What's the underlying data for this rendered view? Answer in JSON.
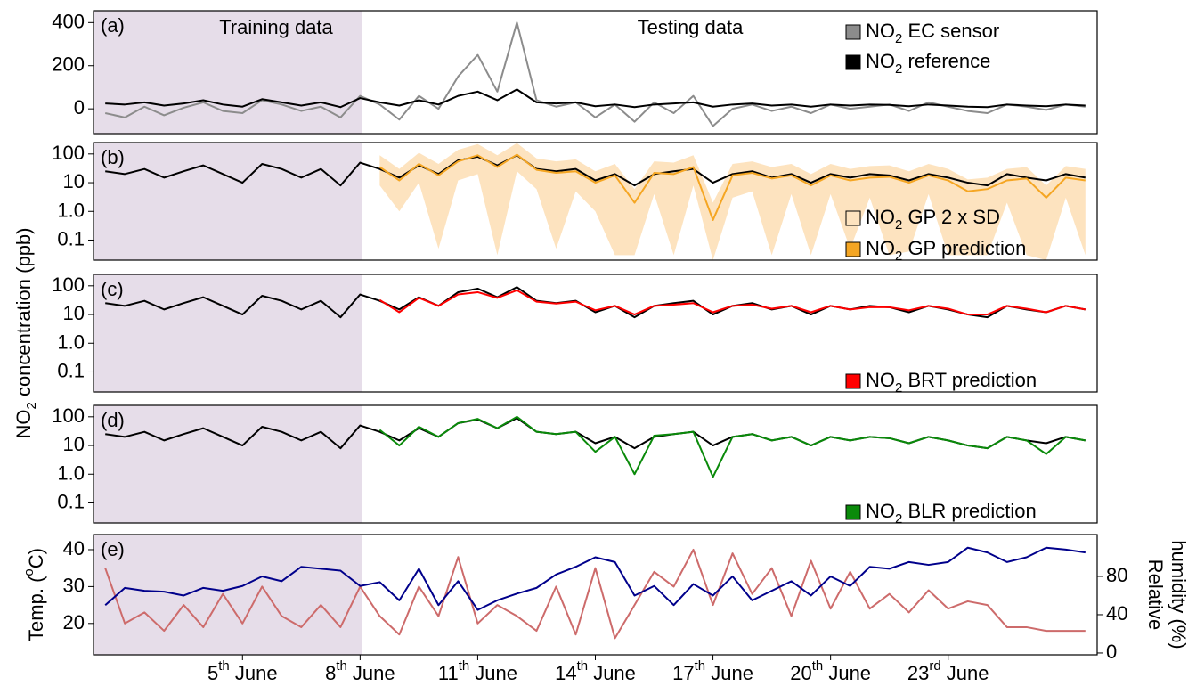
{
  "chart_data": [
    {
      "type": "line",
      "label": "(a)",
      "annotations": [
        "Training data",
        "Testing data"
      ],
      "shaded_region": [
        1.2,
        8.05
      ],
      "xlim": [
        1.2,
        26.8
      ],
      "ylim": [
        -115,
        455
      ],
      "yticks": [
        0,
        200,
        400
      ],
      "legend": "upper right",
      "x": [
        1.5,
        2,
        2.5,
        3,
        3.5,
        4,
        4.5,
        5,
        5.5,
        6,
        6.5,
        7,
        7.5,
        8,
        8.5,
        9,
        9.5,
        10,
        10.5,
        11,
        11.5,
        12,
        12.5,
        13,
        13.5,
        14,
        14.5,
        15,
        15.5,
        16,
        16.5,
        17,
        17.5,
        18,
        18.5,
        19,
        19.5,
        20,
        20.5,
        21,
        21.5,
        22,
        22.5,
        23,
        23.5,
        24,
        24.5,
        25,
        25.5,
        26,
        26.5
      ],
      "series": [
        {
          "name": "NO2 EC sensor",
          "color": "#8c8c8c",
          "values": [
            -20,
            -40,
            10,
            -30,
            5,
            30,
            -10,
            -20,
            40,
            20,
            -10,
            10,
            -40,
            60,
            20,
            -50,
            60,
            0,
            150,
            250,
            80,
            400,
            40,
            10,
            30,
            -40,
            20,
            -60,
            30,
            -20,
            60,
            -80,
            0,
            20,
            -10,
            10,
            -20,
            20,
            0,
            10,
            20,
            -10,
            30,
            10,
            -10,
            -20,
            20,
            10,
            -5,
            20,
            10
          ]
        },
        {
          "name": "NO2 reference",
          "color": "#000000",
          "values": [
            25,
            20,
            30,
            15,
            25,
            40,
            20,
            10,
            45,
            30,
            15,
            30,
            8,
            50,
            30,
            15,
            40,
            20,
            60,
            80,
            40,
            90,
            30,
            25,
            30,
            12,
            20,
            8,
            20,
            25,
            30,
            10,
            20,
            25,
            15,
            20,
            10,
            20,
            15,
            20,
            18,
            12,
            20,
            15,
            10,
            8,
            20,
            15,
            12,
            20,
            15
          ]
        }
      ]
    },
    {
      "type": "line",
      "label": "(b)",
      "log_y": true,
      "xlim": [
        1.2,
        26.8
      ],
      "ylim": [
        0.02,
        250
      ],
      "yticks": [
        {
          "value": 0.1,
          "label": "0.1"
        },
        {
          "value": 1,
          "label": "1.0"
        },
        10,
        100
      ],
      "legend": "lower right",
      "x": [
        1.5,
        2,
        2.5,
        3,
        3.5,
        4,
        4.5,
        5,
        5.5,
        6,
        6.5,
        7,
        7.5,
        8,
        8.5,
        9,
        9.5,
        10,
        10.5,
        11,
        11.5,
        12,
        12.5,
        13,
        13.5,
        14,
        14.5,
        15,
        15.5,
        16,
        16.5,
        17,
        17.5,
        18,
        18.5,
        19,
        19.5,
        20,
        20.5,
        21,
        21.5,
        22,
        22.5,
        23,
        23.5,
        24,
        24.5,
        25,
        25.5,
        26,
        26.5
      ],
      "series": [
        {
          "name": "NO2 GP 2 x SD",
          "color": "#fde3bf",
          "lower": [
            null,
            null,
            null,
            null,
            null,
            null,
            null,
            null,
            null,
            null,
            null,
            null,
            null,
            null,
            8,
            1,
            10,
            0.05,
            12,
            20,
            0.03,
            25,
            6,
            0.05,
            5,
            1,
            0.03,
            0.03,
            4,
            0.03,
            8,
            0.02,
            3,
            5,
            0.03,
            4,
            0.03,
            4,
            0.05,
            3,
            0.03,
            0.04,
            4,
            0.03,
            0.03,
            0.03,
            2,
            0.03,
            0.02,
            3,
            0.03
          ],
          "upper": [
            null,
            null,
            null,
            null,
            null,
            null,
            null,
            null,
            null,
            null,
            null,
            null,
            null,
            null,
            90,
            30,
            110,
            45,
            140,
            220,
            90,
            240,
            70,
            55,
            65,
            25,
            45,
            6,
            55,
            50,
            90,
            2,
            45,
            55,
            35,
            45,
            20,
            45,
            30,
            38,
            40,
            25,
            45,
            30,
            13,
            15,
            30,
            35,
            8,
            38,
            30
          ]
        },
        {
          "color": "#000000",
          "values": [
            25,
            20,
            30,
            15,
            25,
            40,
            20,
            10,
            45,
            30,
            15,
            30,
            8,
            50,
            30,
            15,
            40,
            20,
            60,
            80,
            40,
            90,
            30,
            25,
            30,
            12,
            20,
            8,
            20,
            25,
            30,
            10,
            20,
            25,
            15,
            20,
            10,
            20,
            15,
            20,
            18,
            12,
            20,
            15,
            10,
            8,
            20,
            15,
            12,
            20,
            15
          ]
        },
        {
          "name": "NO2 GP prediction",
          "color": "#f5a623",
          "values": [
            null,
            null,
            null,
            null,
            null,
            null,
            null,
            null,
            null,
            null,
            null,
            null,
            null,
            null,
            35,
            12,
            45,
            18,
            55,
            90,
            35,
            95,
            28,
            22,
            25,
            10,
            18,
            2,
            22,
            20,
            35,
            0.5,
            18,
            22,
            14,
            18,
            8,
            18,
            12,
            15,
            16,
            10,
            18,
            12,
            5,
            6,
            12,
            14,
            3,
            15,
            12
          ]
        }
      ]
    },
    {
      "type": "line",
      "label": "(c)",
      "log_y": true,
      "ylabel": "NO2 concentration (ppb)",
      "xlim": [
        1.2,
        26.8
      ],
      "ylim": [
        0.02,
        250
      ],
      "yticks": [
        {
          "value": 0.1,
          "label": "0.1"
        },
        {
          "value": 1,
          "label": "1.0"
        },
        10,
        100
      ],
      "legend": "lower right",
      "x": [
        1.5,
        2,
        2.5,
        3,
        3.5,
        4,
        4.5,
        5,
        5.5,
        6,
        6.5,
        7,
        7.5,
        8,
        8.5,
        9,
        9.5,
        10,
        10.5,
        11,
        11.5,
        12,
        12.5,
        13,
        13.5,
        14,
        14.5,
        15,
        15.5,
        16,
        16.5,
        17,
        17.5,
        18,
        18.5,
        19,
        19.5,
        20,
        20.5,
        21,
        21.5,
        22,
        22.5,
        23,
        23.5,
        24,
        24.5,
        25,
        25.5,
        26,
        26.5
      ],
      "series": [
        {
          "color": "#000000",
          "values": [
            25,
            20,
            30,
            15,
            25,
            40,
            20,
            10,
            45,
            30,
            15,
            30,
            8,
            50,
            30,
            15,
            40,
            20,
            60,
            80,
            40,
            90,
            30,
            25,
            30,
            12,
            20,
            8,
            20,
            25,
            30,
            10,
            20,
            25,
            15,
            20,
            10,
            20,
            15,
            20,
            18,
            12,
            20,
            15,
            10,
            8,
            20,
            15,
            12,
            20,
            15
          ]
        },
        {
          "name": "NO2 BRT prediction",
          "color": "#ff0000",
          "values": [
            null,
            null,
            null,
            null,
            null,
            null,
            null,
            null,
            null,
            null,
            null,
            null,
            null,
            null,
            32,
            12,
            38,
            20,
            50,
            60,
            38,
            70,
            28,
            24,
            28,
            14,
            20,
            10,
            20,
            22,
            25,
            12,
            20,
            22,
            16,
            20,
            12,
            20,
            15,
            18,
            18,
            14,
            20,
            16,
            10,
            10,
            20,
            16,
            12,
            20,
            15
          ]
        }
      ]
    },
    {
      "type": "line",
      "label": "(d)",
      "log_y": true,
      "xlim": [
        1.2,
        26.8
      ],
      "ylim": [
        0.02,
        250
      ],
      "yticks": [
        {
          "value": 0.1,
          "label": "0.1"
        },
        {
          "value": 1,
          "label": "1.0"
        },
        10,
        100
      ],
      "legend": "lower right",
      "x": [
        1.5,
        2,
        2.5,
        3,
        3.5,
        4,
        4.5,
        5,
        5.5,
        6,
        6.5,
        7,
        7.5,
        8,
        8.5,
        9,
        9.5,
        10,
        10.5,
        11,
        11.5,
        12,
        12.5,
        13,
        13.5,
        14,
        14.5,
        15,
        15.5,
        16,
        16.5,
        17,
        17.5,
        18,
        18.5,
        19,
        19.5,
        20,
        20.5,
        21,
        21.5,
        22,
        22.5,
        23,
        23.5,
        24,
        24.5,
        25,
        25.5,
        26,
        26.5
      ],
      "series": [
        {
          "color": "#000000",
          "values": [
            25,
            20,
            30,
            15,
            25,
            40,
            20,
            10,
            45,
            30,
            15,
            30,
            8,
            50,
            30,
            15,
            40,
            20,
            60,
            80,
            40,
            90,
            30,
            25,
            30,
            12,
            20,
            8,
            20,
            25,
            30,
            10,
            20,
            25,
            15,
            20,
            10,
            20,
            15,
            20,
            18,
            12,
            20,
            15,
            10,
            8,
            20,
            15,
            12,
            20,
            15
          ]
        },
        {
          "name": "NO2 BLR prediction",
          "color": "#0a8a0a",
          "values": [
            null,
            null,
            null,
            null,
            null,
            null,
            null,
            null,
            null,
            null,
            null,
            null,
            null,
            null,
            35,
            10,
            45,
            20,
            60,
            85,
            40,
            100,
            30,
            25,
            30,
            6,
            20,
            1,
            22,
            25,
            30,
            0.8,
            20,
            25,
            15,
            20,
            10,
            20,
            15,
            20,
            18,
            12,
            20,
            15,
            10,
            8,
            20,
            15,
            5,
            20,
            15
          ]
        }
      ]
    },
    {
      "type": "line",
      "label": "(e)",
      "ylabel": "Temp. (oC)",
      "y2label": [
        "Relative",
        "humidity (%)"
      ],
      "xlim": [
        1.2,
        26.8
      ],
      "ylim": [
        11.5,
        44.1
      ],
      "yticks": [
        20,
        30,
        40
      ],
      "y2lim": [
        -1.9,
        123.7
      ],
      "y2ticks": [
        0,
        40,
        80
      ],
      "xticks": [
        {
          "value": 5,
          "label": "5th June"
        },
        {
          "value": 8,
          "label": "8th June"
        },
        {
          "value": 11,
          "label": "11th June"
        },
        {
          "value": 14,
          "label": "14th June"
        },
        {
          "value": 17,
          "label": "17th June"
        },
        {
          "value": 20,
          "label": "20th June"
        },
        {
          "value": 23,
          "label": "23rd June"
        }
      ],
      "x": [
        1.5,
        2,
        2.5,
        3,
        3.5,
        4,
        4.5,
        5,
        5.5,
        6,
        6.5,
        7,
        7.5,
        8,
        8.5,
        9,
        9.5,
        10,
        10.5,
        11,
        11.5,
        12,
        12.5,
        13,
        13.5,
        14,
        14.5,
        15,
        15.5,
        16,
        16.5,
        17,
        17.5,
        18,
        18.5,
        19,
        19.5,
        20,
        20.5,
        21,
        21.5,
        22,
        22.5,
        23,
        23.5,
        24,
        24.5,
        25,
        25.5,
        26,
        26.5
      ],
      "series": [
        {
          "color": "#cd6b6b",
          "values": [
            35,
            20,
            23,
            18,
            25,
            19,
            28,
            20,
            30,
            22,
            19,
            25,
            19,
            30,
            22,
            17,
            30,
            22,
            38,
            20,
            25,
            22,
            18,
            30,
            17,
            35,
            16,
            25,
            34,
            30,
            40,
            25,
            39,
            28,
            35,
            22,
            37,
            24,
            34,
            24,
            28,
            23,
            29,
            24,
            26,
            25,
            19,
            19,
            18,
            18,
            18
          ]
        },
        {
          "color": "#00008b",
          "axis": "y2",
          "values": [
            50,
            68,
            65,
            64,
            60,
            68,
            65,
            70,
            80,
            75,
            90,
            88,
            86,
            70,
            74,
            55,
            88,
            50,
            75,
            45,
            55,
            62,
            68,
            82,
            90,
            100,
            95,
            60,
            70,
            50,
            72,
            60,
            80,
            55,
            65,
            75,
            60,
            80,
            70,
            90,
            88,
            95,
            92,
            95,
            110,
            105,
            95,
            100,
            110,
            108,
            105
          ]
        }
      ]
    }
  ]
}
